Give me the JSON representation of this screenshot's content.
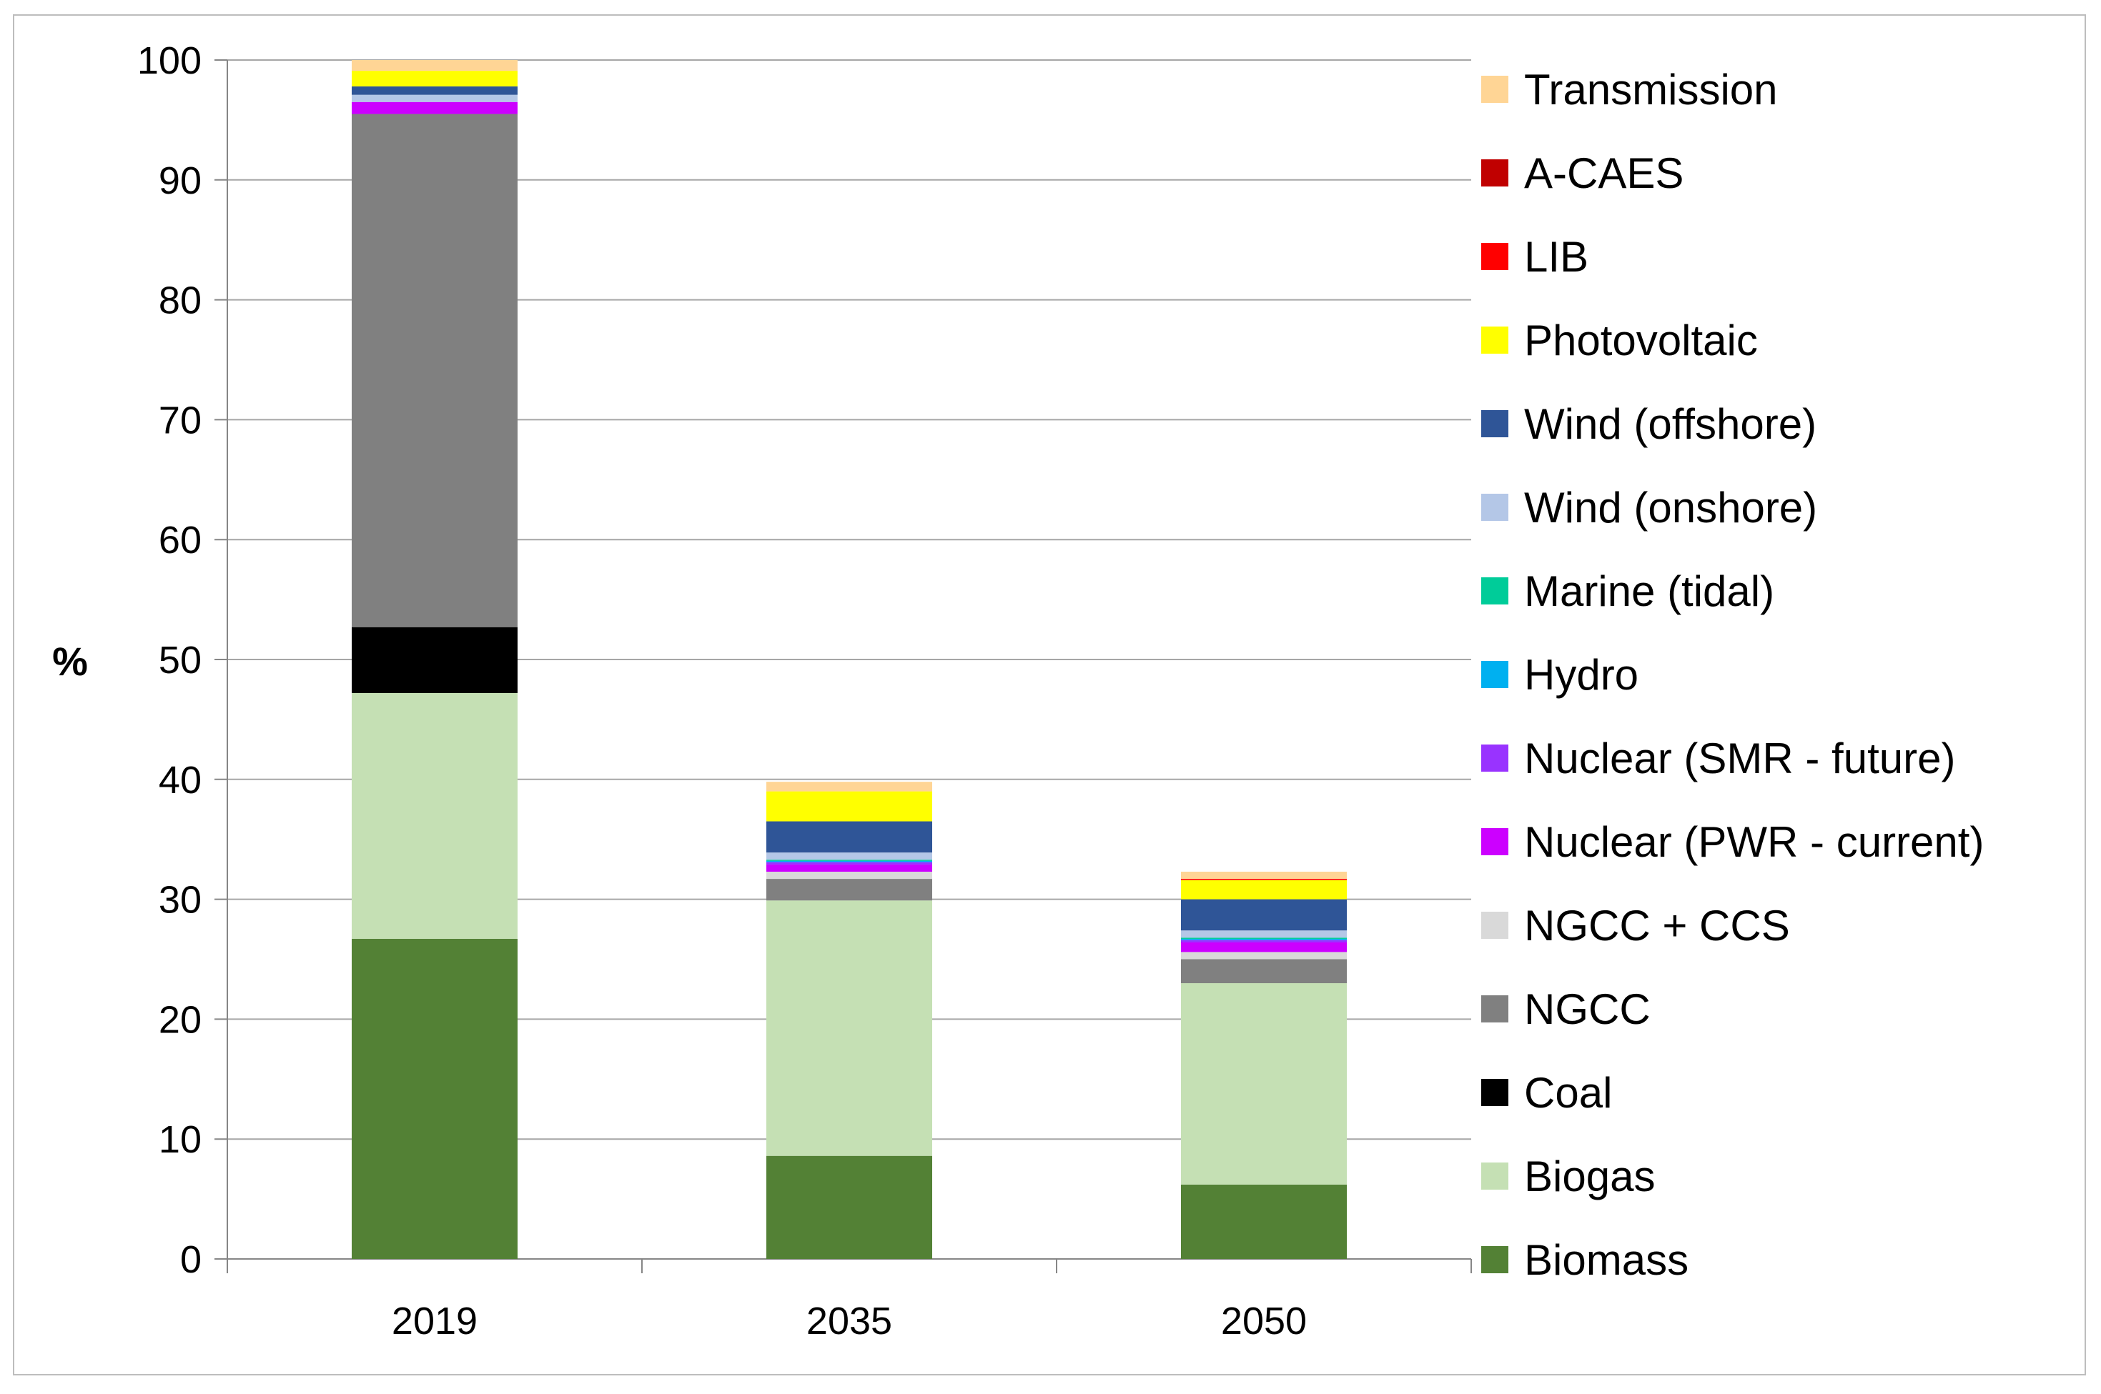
{
  "chart_data": {
    "type": "bar",
    "stacked": true,
    "title": "",
    "xlabel": "",
    "ylabel": "%",
    "ylim": [
      0,
      100
    ],
    "yticks": [
      0,
      10,
      20,
      30,
      40,
      50,
      60,
      70,
      80,
      90,
      100
    ],
    "grid": true,
    "legend_position": "right",
    "categories": [
      "2019",
      "2035",
      "2050"
    ],
    "series": [
      {
        "name": "Biomass",
        "color": "#538135",
        "values": [
          26.7,
          8.6,
          6.2
        ]
      },
      {
        "name": "Biogas",
        "color": "#c5e0b4",
        "values": [
          20.5,
          21.3,
          16.8
        ]
      },
      {
        "name": "Coal",
        "color": "#000000",
        "values": [
          5.5,
          0.0,
          0.0
        ]
      },
      {
        "name": "NGCC",
        "color": "#808080",
        "values": [
          42.8,
          1.8,
          2.0
        ]
      },
      {
        "name": "NGCC + CCS",
        "color": "#d9d9d9",
        "values": [
          0.0,
          0.6,
          0.6
        ]
      },
      {
        "name": "Nuclear (PWR - current)",
        "color": "#cc00ff",
        "values": [
          1.0,
          0.6,
          0.8
        ]
      },
      {
        "name": "Nuclear (SMR - future)",
        "color": "#9933ff",
        "values": [
          0.0,
          0.2,
          0.2
        ]
      },
      {
        "name": "Hydro",
        "color": "#00b0f0",
        "values": [
          0.0,
          0.1,
          0.1
        ]
      },
      {
        "name": "Marine (tidal)",
        "color": "#00cc99",
        "values": [
          0.0,
          0.1,
          0.1
        ]
      },
      {
        "name": "Wind (onshore)",
        "color": "#b4c7e7",
        "values": [
          0.6,
          0.6,
          0.6
        ]
      },
      {
        "name": "Wind (offshore)",
        "color": "#2f5597",
        "values": [
          0.7,
          2.6,
          2.6
        ]
      },
      {
        "name": "Photovoltaic",
        "color": "#ffff00",
        "values": [
          1.3,
          2.5,
          1.6
        ]
      },
      {
        "name": "LIB",
        "color": "#ff0000",
        "values": [
          0.0,
          0.0,
          0.1
        ]
      },
      {
        "name": "A-CAES",
        "color": "#c00000",
        "values": [
          0.0,
          0.0,
          0.0
        ]
      },
      {
        "name": "Transmission",
        "color": "#ffd595",
        "values": [
          0.9,
          0.8,
          0.6
        ]
      }
    ]
  }
}
